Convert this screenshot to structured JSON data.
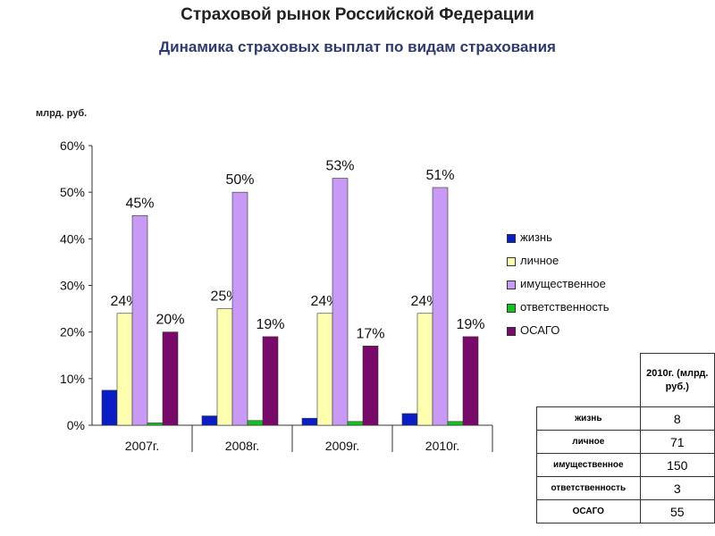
{
  "title": "Страховой рынок Российской Федерации",
  "subtitle": "Динамика страховых выплат по видам страхования",
  "unit_label": "млрд. руб.",
  "chart_data": {
    "type": "bar",
    "categories": [
      "2007г.",
      "2008г.",
      "2009г.",
      "2010г."
    ],
    "ylim": [
      0,
      60
    ],
    "yticks": [
      "0%",
      "10%",
      "20%",
      "30%",
      "40%",
      "50%",
      "60%"
    ],
    "series": [
      {
        "name": "жизнь",
        "color": "#0a1ec8",
        "values": [
          7.5,
          2,
          1.5,
          2.5
        ],
        "labels": [
          "",
          "",
          "",
          ""
        ]
      },
      {
        "name": "личное",
        "color": "#ffffb0",
        "values": [
          24,
          25,
          24,
          24
        ],
        "labels": [
          "24%",
          "25%",
          "24%",
          "24%"
        ]
      },
      {
        "name": "имущественное",
        "color": "#c89af5",
        "values": [
          45,
          50,
          53,
          51
        ],
        "labels": [
          "45%",
          "50%",
          "53%",
          "51%"
        ]
      },
      {
        "name": "ответственность",
        "color": "#12c21e",
        "values": [
          0.5,
          1,
          0.8,
          0.8
        ],
        "labels": [
          "",
          "",
          "",
          ""
        ]
      },
      {
        "name": "ОСАГО",
        "color": "#7a0a6a",
        "values": [
          20,
          19,
          17,
          19
        ],
        "labels": [
          "20%",
          "19%",
          "17%",
          "19%"
        ]
      }
    ],
    "legend_position": "right",
    "grid": false
  },
  "table": {
    "header": "2010г. (млрд. руб.)",
    "rows": [
      {
        "label": "жизнь",
        "value": "8"
      },
      {
        "label": "личное",
        "value": "71"
      },
      {
        "label": "имущественное",
        "value": "150"
      },
      {
        "label": "ответственность",
        "value": "3"
      },
      {
        "label": "ОСАГО",
        "value": "55"
      }
    ]
  }
}
